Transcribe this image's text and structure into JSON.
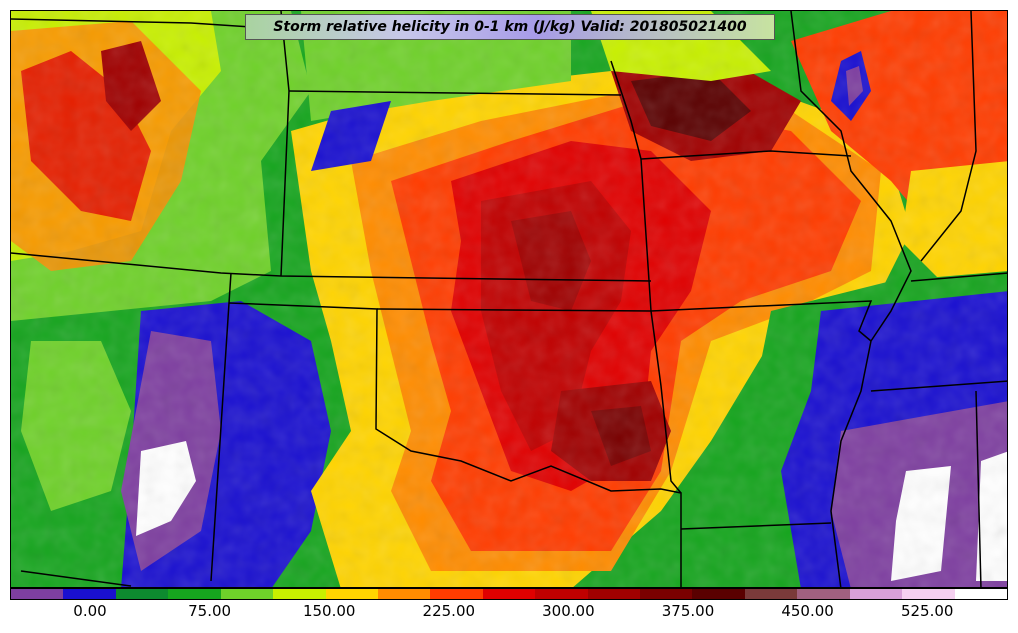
{
  "title": "Storm relative helicity in 0-1 km (J/kg) Valid: 201805021400",
  "colorbar": {
    "colors": [
      "#7e3fa0",
      "#1a10d0",
      "#0d8a2f",
      "#16a51e",
      "#6fd12a",
      "#c8f000",
      "#ffd400",
      "#ff8c00",
      "#ff3c00",
      "#e00000",
      "#c00000",
      "#a00000",
      "#7a0000",
      "#5a0000",
      "#7a3a3a",
      "#a06080",
      "#d8a0d8",
      "#f5d0f0",
      "#ffffff"
    ],
    "tick_labels": [
      "0.00",
      "75.00",
      "150.00",
      "225.00",
      "300.00",
      "375.00",
      "450.00",
      "525.00"
    ]
  }
}
